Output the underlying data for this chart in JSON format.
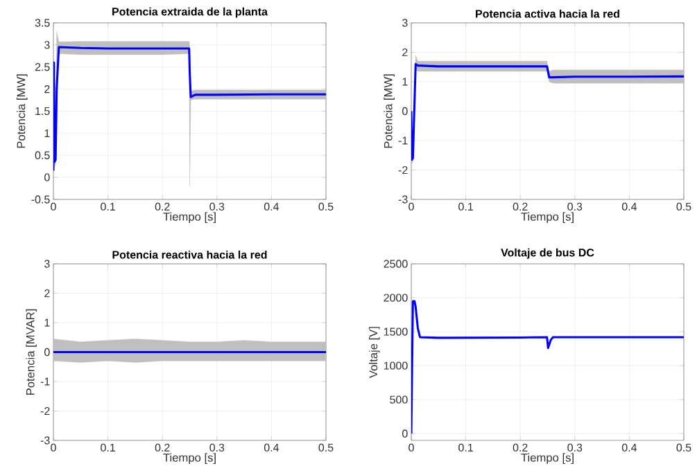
{
  "chart_data": [
    {
      "type": "line",
      "title": "Potencia extraida de la planta",
      "xlabel": "Tiempo [s]",
      "ylabel": "Potencia [MW]",
      "xlim": [
        0,
        0.5
      ],
      "ylim": [
        -0.5,
        3.5
      ],
      "xticks": [
        0,
        0.1,
        0.2,
        0.3,
        0.4,
        0.5
      ],
      "yticks": [
        -0.5,
        0,
        0.5,
        1,
        1.5,
        2,
        2.5,
        3,
        3.5
      ],
      "grid": true,
      "series": [
        {
          "color": "#0000ff",
          "x": [
            0,
            0.001,
            0.002,
            0.004,
            0.006,
            0.01,
            0.05,
            0.1,
            0.2,
            0.249,
            0.25,
            0.252,
            0.26,
            0.3,
            0.4,
            0.5
          ],
          "values": [
            0.15,
            2.6,
            0.35,
            0.4,
            2.0,
            2.95,
            2.93,
            2.92,
            2.92,
            2.92,
            2.4,
            1.82,
            1.87,
            1.87,
            1.88,
            1.88
          ],
          "lower": [
            0.05,
            2.5,
            0.25,
            0.3,
            1.9,
            2.8,
            2.78,
            2.78,
            2.78,
            2.8,
            -0.2,
            1.75,
            1.77,
            1.77,
            1.77,
            1.77
          ],
          "upper": [
            0.25,
            2.7,
            0.45,
            0.5,
            3.3,
            3.07,
            3.08,
            3.08,
            3.08,
            3.08,
            3.0,
            1.95,
            1.98,
            1.98,
            1.98,
            1.98
          ]
        }
      ]
    },
    {
      "type": "line",
      "title": "Potencia activa hacia la red",
      "xlabel": "Tiempo [s]",
      "ylabel": "Potencia [MW]",
      "xlim": [
        0,
        0.5
      ],
      "ylim": [
        -3,
        3
      ],
      "xticks": [
        0,
        0.1,
        0.2,
        0.3,
        0.4,
        0.5
      ],
      "yticks": [
        -3,
        -2,
        -1,
        0,
        1,
        2,
        3
      ],
      "grid": true,
      "series": [
        {
          "color": "#0000ff",
          "x": [
            0,
            0.001,
            0.003,
            0.008,
            0.012,
            0.05,
            0.1,
            0.2,
            0.249,
            0.253,
            0.26,
            0.3,
            0.4,
            0.5
          ],
          "values": [
            0,
            -1.65,
            -1.6,
            1.6,
            1.55,
            1.52,
            1.52,
            1.52,
            1.52,
            1.15,
            1.15,
            1.17,
            1.17,
            1.18
          ],
          "lower": [
            -0.1,
            -1.8,
            -1.7,
            1.4,
            1.35,
            1.35,
            1.35,
            1.35,
            1.35,
            1.0,
            0.95,
            0.95,
            0.95,
            0.95
          ],
          "upper": [
            0.1,
            -1.5,
            -1.5,
            1.9,
            1.7,
            1.7,
            1.7,
            1.7,
            1.7,
            1.35,
            1.4,
            1.4,
            1.4,
            1.4
          ]
        }
      ]
    },
    {
      "type": "line",
      "title": "Potencia reactiva hacia la red",
      "xlabel": "Tiempo [s]",
      "ylabel": "Potencia [MVAR]",
      "xlim": [
        0,
        0.5
      ],
      "ylim": [
        -3,
        3
      ],
      "xticks": [
        0,
        0.1,
        0.2,
        0.3,
        0.4,
        0.5
      ],
      "yticks": [
        -3,
        -2,
        -1,
        0,
        1,
        2,
        3
      ],
      "grid": true,
      "series": [
        {
          "color": "#0000ff",
          "x": [
            0,
            0.05,
            0.1,
            0.15,
            0.2,
            0.25,
            0.3,
            0.35,
            0.4,
            0.45,
            0.5
          ],
          "values": [
            0,
            0,
            0,
            0,
            0,
            0,
            0,
            0,
            0,
            0,
            0
          ],
          "lower": [
            -0.3,
            -0.35,
            -0.3,
            -0.35,
            -0.3,
            -0.3,
            -0.3,
            -0.3,
            -0.3,
            -0.3,
            -0.3
          ],
          "upper": [
            0.45,
            0.35,
            0.4,
            0.45,
            0.4,
            0.35,
            0.35,
            0.4,
            0.35,
            0.35,
            0.35
          ]
        }
      ]
    },
    {
      "type": "line",
      "title": "Voltaje de bus DC",
      "xlabel": "Tiempo [s]",
      "ylabel": "Voltaje [V]",
      "xlim": [
        0,
        0.5
      ],
      "ylim": [
        -100,
        2500
      ],
      "xticks": [
        0,
        0.1,
        0.2,
        0.3,
        0.4,
        0.5
      ],
      "yticks": [
        0,
        500,
        1000,
        1500,
        2000,
        2500
      ],
      "grid": true,
      "series": [
        {
          "color": "#0000ff",
          "x": [
            0,
            0.003,
            0.006,
            0.008,
            0.012,
            0.016,
            0.05,
            0.2,
            0.249,
            0.251,
            0.256,
            0.26,
            0.5
          ],
          "values": [
            0,
            1950,
            1950,
            1870,
            1550,
            1420,
            1410,
            1415,
            1420,
            1260,
            1380,
            1420,
            1420
          ]
        }
      ]
    }
  ]
}
